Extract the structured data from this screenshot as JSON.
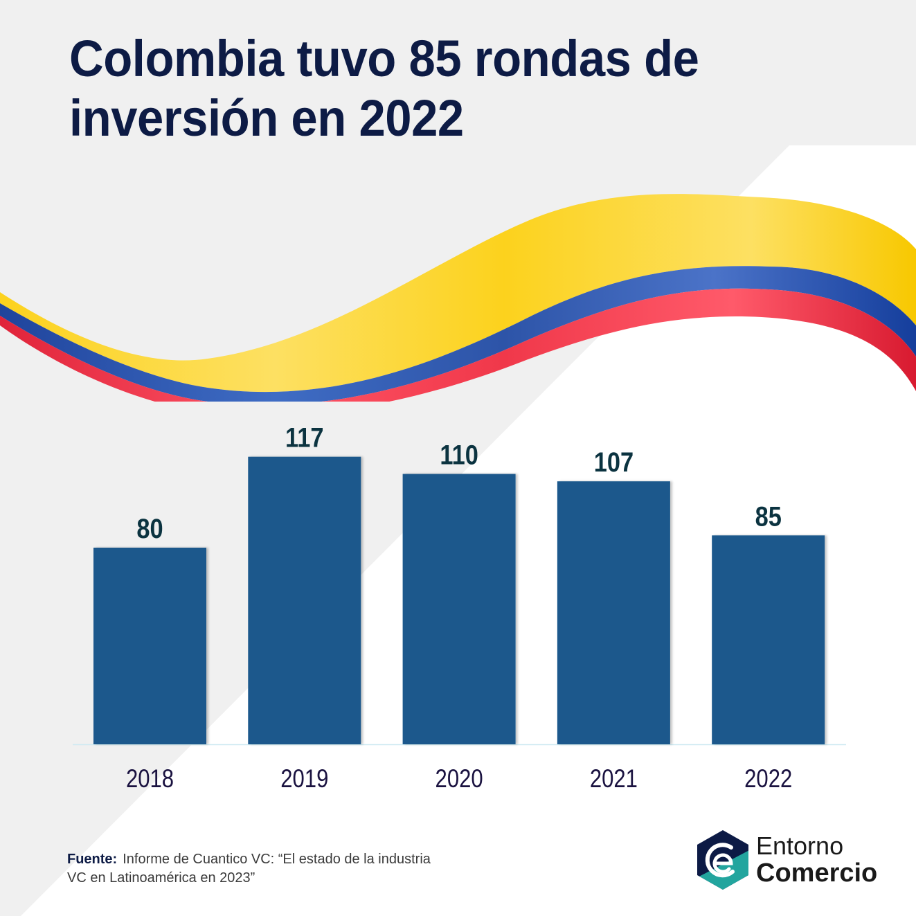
{
  "header": {
    "title_line1": "Colombia tuvo 85 rondas de",
    "title_line2": "inversión en 2022"
  },
  "colors": {
    "background_light": "#f0f0f0",
    "background_white": "#ffffff",
    "title": "#0d1b45",
    "bar": "#1a588c",
    "value_label": "#0b3340",
    "category_label": "#1a1240",
    "axis_line": "#cfeaf2",
    "flag_yellow": "#fcd21d",
    "flag_blue": "#2d54a8",
    "flag_red": "#f0384a",
    "logo_navy": "#0c1a45",
    "logo_teal": "#22a59e"
  },
  "chart_data": {
    "type": "bar",
    "title": "Colombia tuvo 85 rondas de inversión en 2022",
    "xlabel": "",
    "ylabel": "",
    "categories": [
      "2018",
      "2019",
      "2020",
      "2021",
      "2022"
    ],
    "values": [
      80,
      117,
      110,
      107,
      85
    ],
    "data_labels": [
      "80",
      "117",
      "110",
      "107",
      "85"
    ],
    "ylim": [
      0,
      117
    ],
    "grid": false,
    "legend": "none",
    "y_axis_visible": false
  },
  "footer": {
    "source_label": "Fuente:",
    "source_text_line1": "Informe de Cuantico VC: “El estado de la industria",
    "source_text_line2": "VC en Latinoamérica en 2023”"
  },
  "brand": {
    "logo_icon": "entorno-comercio-hexagon-logo",
    "name_line1": "Entorno",
    "name_line2": "Comercio"
  }
}
